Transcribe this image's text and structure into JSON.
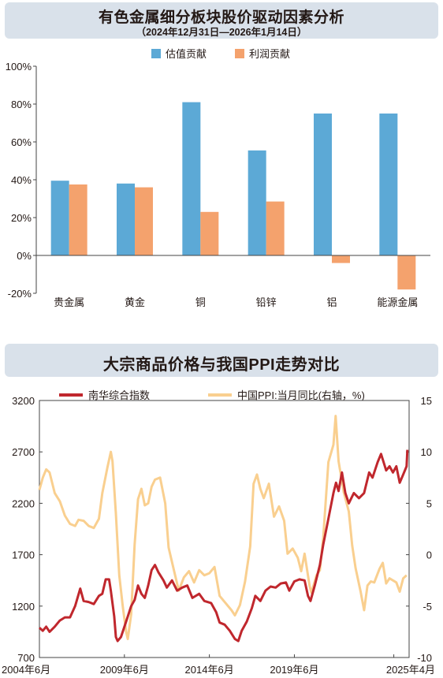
{
  "chart_data": [
    {
      "type": "bar",
      "title": "有色金属细分板块股价驱动因素分析",
      "subtitle": "（2024年12月31日—2026年1月14日）",
      "categories": [
        "贵金属",
        "黄金",
        "铜",
        "铅锌",
        "铝",
        "能源金属"
      ],
      "series": [
        {
          "name": "估值贡献",
          "color": "#5ca9d6",
          "values": [
            39.5,
            38,
            81,
            55.5,
            75,
            75
          ]
        },
        {
          "name": "利润贡献",
          "color": "#f4a26d",
          "values": [
            37.5,
            36,
            23,
            28.5,
            -4,
            -18
          ]
        }
      ],
      "y_ticks": [
        "100%",
        "80%",
        "60%",
        "40%",
        "20%",
        "0%",
        "-20%"
      ],
      "ylim": [
        -20,
        100
      ],
      "legend": "top-center",
      "grid": false
    },
    {
      "type": "line",
      "title": "大宗商品价格与我国PPI走势对比",
      "x_ticks": [
        "2004年6月",
        "2009年6月",
        "2014年6月",
        "2019年6月",
        "2025年4月"
      ],
      "y_left_ticks": [
        "3200",
        "2700",
        "2200",
        "1700",
        "1200",
        "700"
      ],
      "y_right_ticks": [
        "15",
        "10",
        "5",
        "0",
        "-5",
        "-10"
      ],
      "ylim_left": [
        700,
        3200
      ],
      "ylim_right": [
        -10,
        15
      ],
      "legend": "top-center",
      "series": [
        {
          "name": "南华综合指数",
          "color": "#c0272d",
          "axis": "left",
          "points": [
            [
              2004.4,
              990
            ],
            [
              2004.6,
              960
            ],
            [
              2004.8,
              1000
            ],
            [
              2005.0,
              950
            ],
            [
              2005.3,
              1000
            ],
            [
              2005.6,
              1060
            ],
            [
              2005.9,
              1090
            ],
            [
              2006.2,
              1090
            ],
            [
              2006.5,
              1200
            ],
            [
              2006.8,
              1370
            ],
            [
              2007.0,
              1250
            ],
            [
              2007.3,
              1240
            ],
            [
              2007.6,
              1220
            ],
            [
              2007.9,
              1300
            ],
            [
              2008.1,
              1320
            ],
            [
              2008.3,
              1460
            ],
            [
              2008.5,
              1460
            ],
            [
              2008.6,
              1350
            ],
            [
              2008.8,
              1100
            ],
            [
              2008.9,
              900
            ],
            [
              2009.0,
              860
            ],
            [
              2009.2,
              900
            ],
            [
              2009.5,
              1050
            ],
            [
              2009.8,
              1200
            ],
            [
              2010.0,
              1260
            ],
            [
              2010.2,
              1400
            ],
            [
              2010.4,
              1320
            ],
            [
              2010.6,
              1280
            ],
            [
              2010.8,
              1400
            ],
            [
              2011.0,
              1550
            ],
            [
              2011.2,
              1600
            ],
            [
              2011.4,
              1530
            ],
            [
              2011.7,
              1450
            ],
            [
              2011.9,
              1380
            ],
            [
              2012.2,
              1450
            ],
            [
              2012.5,
              1350
            ],
            [
              2012.8,
              1380
            ],
            [
              2013.1,
              1400
            ],
            [
              2013.4,
              1280
            ],
            [
              2013.8,
              1320
            ],
            [
              2014.1,
              1250
            ],
            [
              2014.5,
              1230
            ],
            [
              2014.8,
              1140
            ],
            [
              2015.0,
              1040
            ],
            [
              2015.3,
              1020
            ],
            [
              2015.6,
              960
            ],
            [
              2015.9,
              880
            ],
            [
              2016.1,
              860
            ],
            [
              2016.3,
              960
            ],
            [
              2016.6,
              1050
            ],
            [
              2016.9,
              1180
            ],
            [
              2017.1,
              1300
            ],
            [
              2017.4,
              1250
            ],
            [
              2017.7,
              1350
            ],
            [
              2018.0,
              1390
            ],
            [
              2018.3,
              1380
            ],
            [
              2018.6,
              1420
            ],
            [
              2018.9,
              1430
            ],
            [
              2019.1,
              1350
            ],
            [
              2019.4,
              1440
            ],
            [
              2019.7,
              1460
            ],
            [
              2020.0,
              1450
            ],
            [
              2020.2,
              1300
            ],
            [
              2020.35,
              1250
            ],
            [
              2020.6,
              1400
            ],
            [
              2020.9,
              1600
            ],
            [
              2021.1,
              1800
            ],
            [
              2021.4,
              2050
            ],
            [
              2021.7,
              2300
            ],
            [
              2021.85,
              2400
            ],
            [
              2022.0,
              2320
            ],
            [
              2022.2,
              2500
            ],
            [
              2022.4,
              2300
            ],
            [
              2022.6,
              2200
            ],
            [
              2022.9,
              2300
            ],
            [
              2023.2,
              2250
            ],
            [
              2023.5,
              2300
            ],
            [
              2023.8,
              2500
            ],
            [
              2024.0,
              2450
            ],
            [
              2024.3,
              2600
            ],
            [
              2024.5,
              2680
            ],
            [
              2024.8,
              2520
            ],
            [
              2025.0,
              2560
            ],
            [
              2025.2,
              2500
            ],
            [
              2025.4,
              2560
            ],
            [
              2025.6,
              2400
            ],
            [
              2025.8,
              2480
            ],
            [
              2026.0,
              2560
            ],
            [
              2026.05,
              2720
            ]
          ]
        },
        {
          "name": "中国PPI:当月同比(右轴，%)",
          "color": "#f9cf8f",
          "axis": "right",
          "points": [
            [
              2004.4,
              6.3
            ],
            [
              2004.6,
              7.5
            ],
            [
              2004.8,
              8.3
            ],
            [
              2005.0,
              8.0
            ],
            [
              2005.3,
              6.0
            ],
            [
              2005.6,
              5.2
            ],
            [
              2005.9,
              3.8
            ],
            [
              2006.2,
              3.0
            ],
            [
              2006.5,
              2.8
            ],
            [
              2006.7,
              3.4
            ],
            [
              2007.0,
              3.3
            ],
            [
              2007.3,
              2.8
            ],
            [
              2007.6,
              2.6
            ],
            [
              2007.9,
              3.5
            ],
            [
              2008.1,
              6.0
            ],
            [
              2008.4,
              8.5
            ],
            [
              2008.6,
              10.0
            ],
            [
              2008.7,
              9.1
            ],
            [
              2008.9,
              4.0
            ],
            [
              2009.1,
              -2.0
            ],
            [
              2009.3,
              -5.0
            ],
            [
              2009.5,
              -7.5
            ],
            [
              2009.6,
              -8.2
            ],
            [
              2009.8,
              -5.8
            ],
            [
              2010.0,
              1.0
            ],
            [
              2010.2,
              5.4
            ],
            [
              2010.4,
              6.4
            ],
            [
              2010.6,
              4.8
            ],
            [
              2010.8,
              5.0
            ],
            [
              2011.0,
              6.6
            ],
            [
              2011.2,
              7.3
            ],
            [
              2011.5,
              7.5
            ],
            [
              2011.8,
              5.0
            ],
            [
              2012.0,
              0.7
            ],
            [
              2012.3,
              -1.4
            ],
            [
              2012.6,
              -3.5
            ],
            [
              2012.9,
              -2.2
            ],
            [
              2013.2,
              -1.6
            ],
            [
              2013.5,
              -2.7
            ],
            [
              2013.8,
              -1.5
            ],
            [
              2014.1,
              -2.0
            ],
            [
              2014.4,
              -1.8
            ],
            [
              2014.7,
              -1.2
            ],
            [
              2015.0,
              -4.0
            ],
            [
              2015.3,
              -4.6
            ],
            [
              2015.7,
              -5.4
            ],
            [
              2015.9,
              -5.9
            ],
            [
              2016.2,
              -4.9
            ],
            [
              2016.5,
              -2.6
            ],
            [
              2016.8,
              0.8
            ],
            [
              2017.0,
              6.9
            ],
            [
              2017.2,
              7.8
            ],
            [
              2017.4,
              6.4
            ],
            [
              2017.6,
              5.5
            ],
            [
              2017.9,
              6.9
            ],
            [
              2018.2,
              3.7
            ],
            [
              2018.5,
              4.7
            ],
            [
              2018.8,
              3.3
            ],
            [
              2019.0,
              0.1
            ],
            [
              2019.3,
              0.6
            ],
            [
              2019.6,
              -0.3
            ],
            [
              2019.8,
              -1.6
            ],
            [
              2020.0,
              0.1
            ],
            [
              2020.3,
              -3.1
            ],
            [
              2020.4,
              -3.7
            ],
            [
              2020.7,
              -2.0
            ],
            [
              2020.9,
              -1.5
            ],
            [
              2021.1,
              1.7
            ],
            [
              2021.4,
              9.0
            ],
            [
              2021.7,
              10.7
            ],
            [
              2021.83,
              13.5
            ],
            [
              2022.0,
              9.1
            ],
            [
              2022.3,
              6.1
            ],
            [
              2022.6,
              4.2
            ],
            [
              2022.8,
              0.9
            ],
            [
              2023.0,
              -1.3
            ],
            [
              2023.3,
              -3.6
            ],
            [
              2023.5,
              -5.4
            ],
            [
              2023.7,
              -3.0
            ],
            [
              2023.9,
              -2.6
            ],
            [
              2024.1,
              -2.7
            ],
            [
              2024.4,
              -1.4
            ],
            [
              2024.6,
              -0.8
            ],
            [
              2024.8,
              -2.8
            ],
            [
              2025.0,
              -2.3
            ],
            [
              2025.2,
              -2.5
            ],
            [
              2025.4,
              -2.7
            ],
            [
              2025.6,
              -3.6
            ],
            [
              2025.8,
              -2.3
            ],
            [
              2026.0,
              -2.0
            ]
          ]
        }
      ]
    }
  ]
}
